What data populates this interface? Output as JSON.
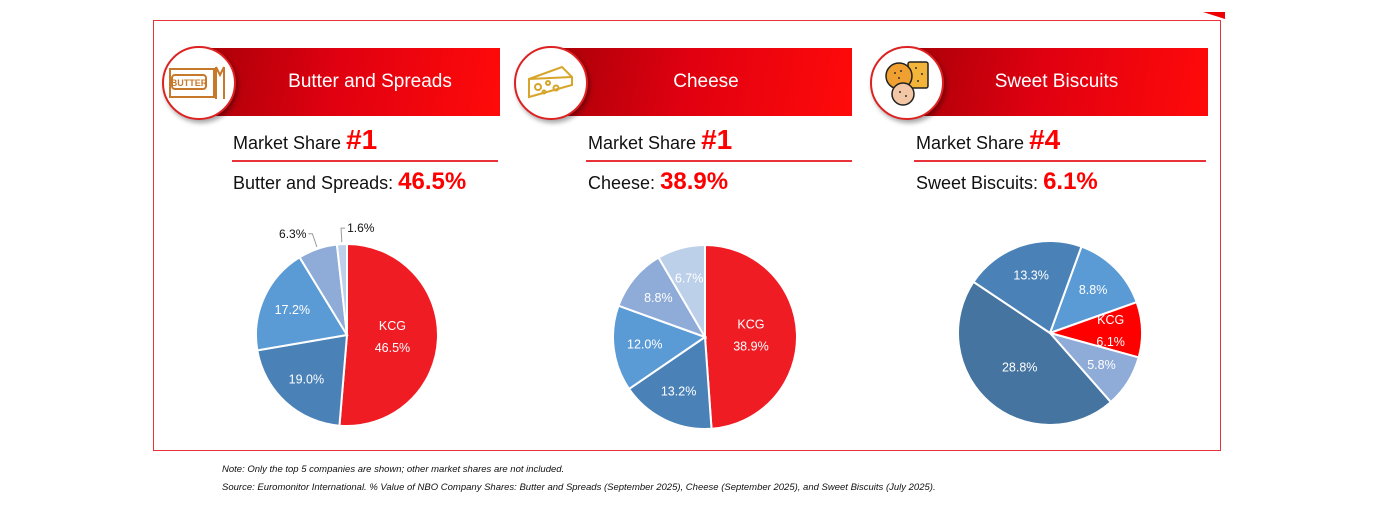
{
  "panels": [
    {
      "title": "Butter and Spreads",
      "icon": "butter-icon",
      "icon_text": "BUTTER",
      "market_share_label": "Market Share",
      "rank": "#1",
      "category_label": "Butter and Spreads:",
      "value": "46.5%"
    },
    {
      "title": "Cheese",
      "icon": "cheese-icon",
      "market_share_label": "Market Share",
      "rank": "#1",
      "category_label": "Cheese:",
      "value": "38.9%"
    },
    {
      "title": "Sweet Biscuits",
      "icon": "biscuits-icon",
      "market_share_label": "Market Share",
      "rank": "#4",
      "category_label": "Sweet Biscuits:",
      "value": "6.1%"
    }
  ],
  "chart_data": [
    {
      "type": "pie",
      "title": "Butter and Spreads",
      "start_deg": 0,
      "slices": [
        {
          "label": "KCG",
          "value": 46.5,
          "text": "46.5%",
          "color": "#f01c24"
        },
        {
          "label": "",
          "value": 19.0,
          "text": "19.0%",
          "color": "#4a82b8"
        },
        {
          "label": "",
          "value": 17.2,
          "text": "17.2%",
          "color": "#5b9bd5"
        },
        {
          "label": "",
          "value": 6.3,
          "text": "6.3%",
          "color": "#8fabd8",
          "outside": true
        },
        {
          "label": "",
          "value": 1.6,
          "text": "1.6%",
          "color": "#bdd0ea",
          "outside": true
        }
      ]
    },
    {
      "type": "pie",
      "title": "Cheese",
      "start_deg": 0,
      "slices": [
        {
          "label": "KCG",
          "value": 38.9,
          "text": "38.9%",
          "color": "#f01c24"
        },
        {
          "label": "",
          "value": 13.2,
          "text": "13.2%",
          "color": "#4a82b8"
        },
        {
          "label": "",
          "value": 12.0,
          "text": "12.0%",
          "color": "#5b9bd5"
        },
        {
          "label": "",
          "value": 8.8,
          "text": "8.8%",
          "color": "#8fabd8"
        },
        {
          "label": "",
          "value": 6.7,
          "text": "6.7%",
          "color": "#bdd0ea"
        }
      ]
    },
    {
      "type": "pie",
      "title": "Sweet Biscuits",
      "start_deg": 20,
      "slices": [
        {
          "label": "",
          "value": 8.8,
          "text": "8.8%",
          "color": "#5b9bd5"
        },
        {
          "label": "KCG",
          "value": 6.1,
          "text": "6.1%",
          "color": "#ff0000"
        },
        {
          "label": "",
          "value": 5.8,
          "text": "5.8%",
          "color": "#8fabd8"
        },
        {
          "label": "",
          "value": 28.8,
          "text": "28.8%",
          "color": "#44749f"
        },
        {
          "label": "",
          "value": 13.3,
          "text": "13.3%",
          "color": "#4a82b8"
        }
      ]
    }
  ],
  "notes": {
    "note": "Note: Only the top 5 companies are shown; other market shares are not included.",
    "source": "Source: Euromonitor International. % Value of NBO Company Shares: Butter and Spreads (September 2025), Cheese (September 2025), and Sweet Biscuits (July 2025)."
  }
}
